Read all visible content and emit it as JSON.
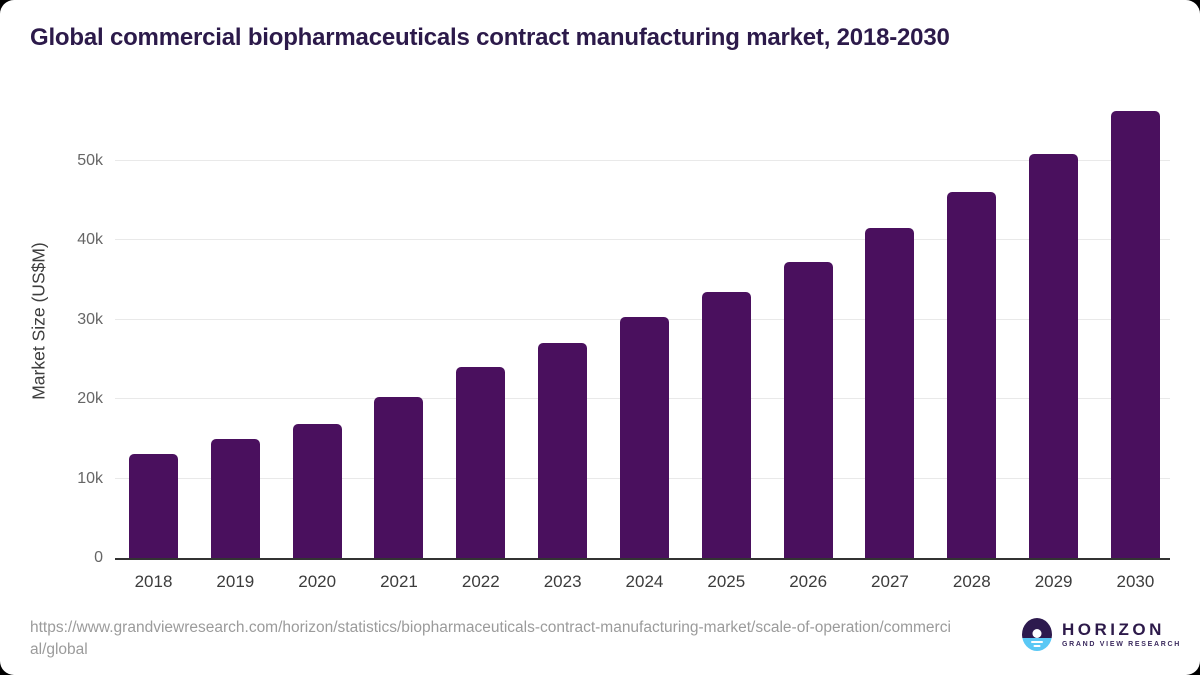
{
  "header": {
    "title": "Global commercial biopharmaceuticals contract manufacturing market, 2018-2030"
  },
  "chart_data": {
    "type": "bar",
    "title": "Global commercial biopharmaceuticals contract manufacturing market, 2018-2030",
    "categories": [
      "2018",
      "2019",
      "2020",
      "2021",
      "2022",
      "2023",
      "2024",
      "2025",
      "2026",
      "2027",
      "2028",
      "2029",
      "2030"
    ],
    "values": [
      13100,
      15000,
      16900,
      20300,
      24000,
      27000,
      30300,
      33500,
      37300,
      41500,
      46000,
      50800,
      56200
    ],
    "xlabel": "",
    "ylabel": "Market Size (US$M)",
    "ylim": [
      0,
      57500
    ],
    "yticks": [
      0,
      10000,
      20000,
      30000,
      40000,
      50000
    ],
    "ytick_labels": [
      "0",
      "10k",
      "20k",
      "30k",
      "40k",
      "50k"
    ],
    "grid": true,
    "legend": false,
    "bar_color": "#4a105e"
  },
  "footer": {
    "source_url": "https://www.grandviewresearch.com/horizon/statistics/biopharmaceuticals-contract-manufacturing-market/scale-of-operation/commercial/global",
    "logo_name": "HORIZON",
    "logo_subtitle": "GRAND VIEW RESEARCH"
  },
  "colors": {
    "bar": "#4a105e",
    "title_text": "#2c1a4a",
    "axis_line": "#333333",
    "gridline": "#e9e9e9",
    "y_tick_text": "#666666",
    "x_tick_text": "#3c3c3c",
    "url_text": "#9b9b9b",
    "logo_blue": "#5ac8f5",
    "logo_purple": "#2d1a4e",
    "card_background": "#ffffff"
  }
}
